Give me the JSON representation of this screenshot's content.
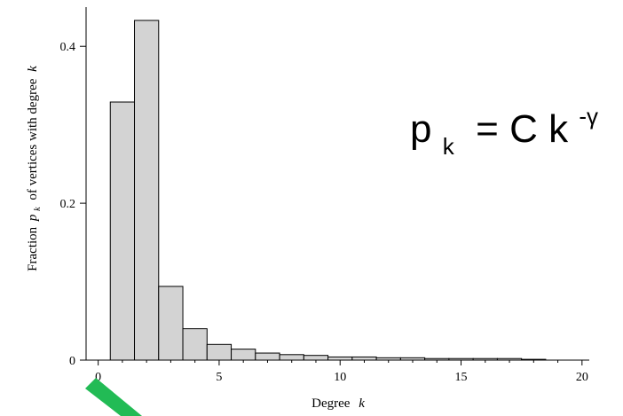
{
  "chart_data": {
    "type": "bar",
    "xlabel_prefix": "Degree",
    "xlabel_var": "k",
    "ylabel_prefix": "Fraction",
    "ylabel_var": "p",
    "ylabel_sub": "k",
    "ylabel_suffix": "of vertices with degree",
    "ylabel_suffix_var": "k",
    "x_ticks": [
      0,
      5,
      10,
      15,
      20
    ],
    "y_ticks": [
      {
        "value": 0,
        "label": "0"
      },
      {
        "value": 0.2,
        "label": "0.2"
      },
      {
        "value": 0.4,
        "label": "0.4"
      }
    ],
    "xlim": [
      -0.5,
      20.3
    ],
    "ylim": [
      0,
      0.45
    ],
    "bars": [
      {
        "k": 1,
        "value": 0.329
      },
      {
        "k": 2,
        "value": 0.433
      },
      {
        "k": 3,
        "value": 0.094
      },
      {
        "k": 4,
        "value": 0.04
      },
      {
        "k": 5,
        "value": 0.02
      },
      {
        "k": 6,
        "value": 0.014
      },
      {
        "k": 7,
        "value": 0.009
      },
      {
        "k": 8,
        "value": 0.007
      },
      {
        "k": 9,
        "value": 0.006
      },
      {
        "k": 10,
        "value": 0.004
      },
      {
        "k": 11,
        "value": 0.004
      },
      {
        "k": 12,
        "value": 0.003
      },
      {
        "k": 13,
        "value": 0.003
      },
      {
        "k": 14,
        "value": 0.002
      },
      {
        "k": 15,
        "value": 0.002
      },
      {
        "k": 16,
        "value": 0.002
      },
      {
        "k": 17,
        "value": 0.002
      },
      {
        "k": 18,
        "value": 0.001
      }
    ],
    "bar_fill": "#d3d3d3",
    "bar_stroke": "#000000",
    "annotation": {
      "base": "p",
      "sub": "k",
      "middle": " = C k",
      "sup": "-γ"
    },
    "arrow_color": "#22bb55"
  }
}
